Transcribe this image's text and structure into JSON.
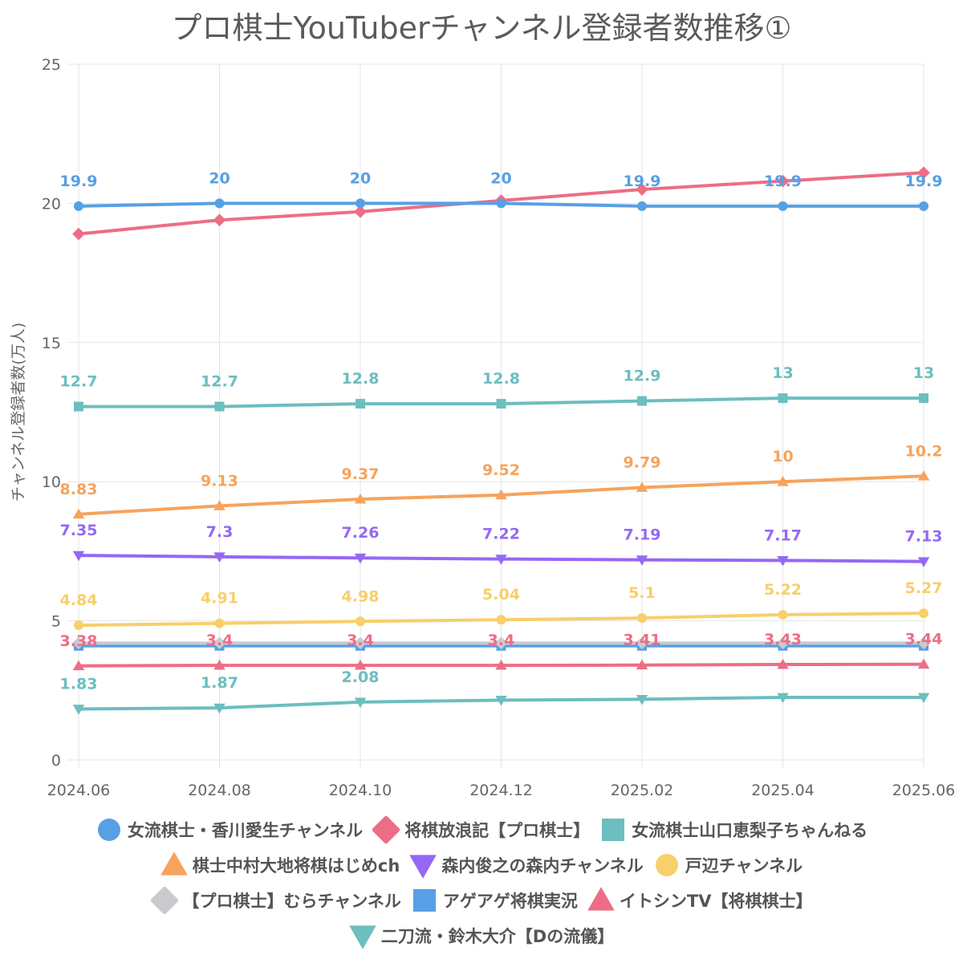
{
  "chart_data": {
    "type": "line",
    "title": "プロ棋士YouTuberチャンネル登録者数推移①",
    "ylabel": "チャンネル登録者数(万人)",
    "ylim": [
      0,
      25
    ],
    "yticks": [
      "0",
      "5",
      "10",
      "15",
      "20",
      "25"
    ],
    "categories": [
      "2024.06",
      "2024.08",
      "2024.10",
      "2024.12",
      "2025.02",
      "2025.04",
      "2025.06"
    ],
    "grid": true,
    "legend_position": "bottom",
    "series": [
      {
        "name": "女流棋士・香川愛生チャンネル",
        "color": "#57a0e5",
        "marker": "circle",
        "values": [
          19.9,
          20,
          20,
          20,
          19.9,
          19.9,
          19.9
        ],
        "labels": [
          "19.9",
          "20",
          "20",
          "20",
          "19.9",
          "19.9",
          "19.9"
        ]
      },
      {
        "name": "将棋放浪記【プロ棋士】",
        "color": "#ed6d85",
        "marker": "diamond",
        "values": [
          18.9,
          19.4,
          19.7,
          20.1,
          20.5,
          20.8,
          21.1
        ],
        "labels": []
      },
      {
        "name": "女流棋士山口恵梨子ちゃんねる",
        "color": "#6cbebf",
        "marker": "square",
        "values": [
          12.7,
          12.7,
          12.8,
          12.8,
          12.9,
          13,
          13
        ],
        "labels": [
          "12.7",
          "12.7",
          "12.8",
          "12.8",
          "12.9",
          "13",
          "13"
        ]
      },
      {
        "name": "棋士中村大地将棋はじめch",
        "color": "#f7a35c",
        "marker": "triangle",
        "values": [
          8.83,
          9.13,
          9.37,
          9.52,
          9.79,
          10,
          10.2
        ],
        "labels": [
          "8.83",
          "9.13",
          "9.37",
          "9.52",
          "9.79",
          "10",
          "10.2"
        ]
      },
      {
        "name": "森内俊之の森内チャンネル",
        "color": "#9468f5",
        "marker": "triangle-down",
        "values": [
          7.35,
          7.3,
          7.26,
          7.22,
          7.19,
          7.17,
          7.13
        ],
        "labels": [
          "7.35",
          "7.3",
          "7.26",
          "7.22",
          "7.19",
          "7.17",
          "7.13"
        ]
      },
      {
        "name": "戸辺チャンネル",
        "color": "#f7cf6b",
        "marker": "circle",
        "values": [
          4.84,
          4.91,
          4.98,
          5.04,
          5.1,
          5.22,
          5.27
        ],
        "labels": [
          "4.84",
          "4.91",
          "4.98",
          "5.04",
          "5.1",
          "5.22",
          "5.27"
        ]
      },
      {
        "name": "【プロ棋士】むらチャンネル",
        "color": "#c9cbcf",
        "marker": "diamond",
        "values": [
          4.2,
          4.2,
          4.2,
          4.2,
          4.2,
          4.2,
          4.2
        ],
        "labels": []
      },
      {
        "name": "アゲアゲ将棋実況",
        "color": "#57a0e5",
        "marker": "square",
        "values": [
          4.1,
          4.1,
          4.1,
          4.1,
          4.1,
          4.1,
          4.1
        ],
        "labels": []
      },
      {
        "name": "イトシンTV【将棋棋士】",
        "color": "#ed6d85",
        "marker": "triangle",
        "values": [
          3.38,
          3.4,
          3.4,
          3.4,
          3.41,
          3.43,
          3.44
        ],
        "labels": [
          "3.38",
          "3.4",
          "3.4",
          "3.4",
          "3.41",
          "3.43",
          "3.44"
        ]
      },
      {
        "name": "二刀流・鈴木大介【Dの流儀】",
        "color": "#6cbebf",
        "marker": "triangle-down",
        "values": [
          1.83,
          1.87,
          2.08,
          2.15,
          2.18,
          2.25,
          2.25
        ],
        "labels": [
          "1.83",
          "1.87",
          "2.08",
          "",
          "",
          "",
          ""
        ]
      }
    ]
  }
}
